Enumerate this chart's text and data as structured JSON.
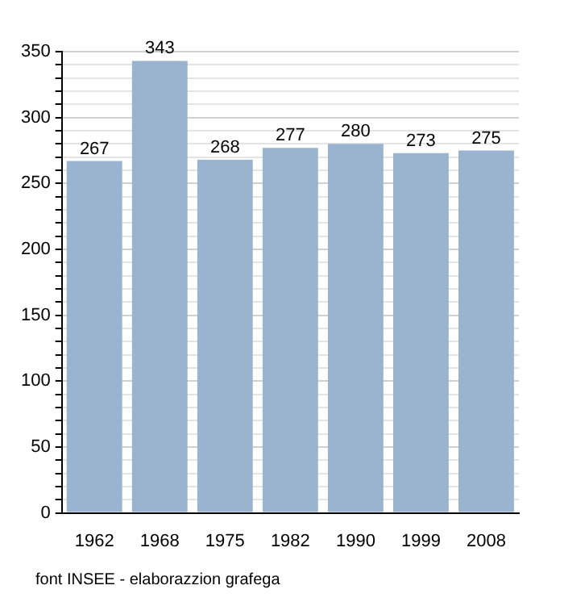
{
  "chart_data": {
    "type": "bar",
    "categories": [
      "1962",
      "1968",
      "1975",
      "1982",
      "1990",
      "1999",
      "2008"
    ],
    "values": [
      267,
      343,
      268,
      277,
      280,
      273,
      275
    ],
    "color": "#9ab4cf",
    "ylim": [
      0,
      350
    ],
    "yticks": [
      0,
      {
        "value": 10,
        "label": null
      },
      {
        "value": 20,
        "label": null
      },
      {
        "value": 30,
        "label": null
      },
      {
        "value": 40,
        "label": null
      },
      50,
      {
        "value": 60,
        "label": null
      },
      {
        "value": 70,
        "label": null
      },
      {
        "value": 80,
        "label": null
      },
      {
        "value": 90,
        "label": null
      },
      100,
      {
        "value": 110,
        "label": null
      },
      {
        "value": 120,
        "label": null
      },
      {
        "value": 130,
        "label": null
      },
      {
        "value": 140,
        "label": null
      },
      150,
      {
        "value": 160,
        "label": null
      },
      {
        "value": 170,
        "label": null
      },
      {
        "value": 180,
        "label": null
      },
      {
        "value": 190,
        "label": null
      },
      200,
      {
        "value": 210,
        "label": null
      },
      {
        "value": 220,
        "label": null
      },
      {
        "value": 230,
        "label": null
      },
      {
        "value": 240,
        "label": null
      },
      250,
      {
        "value": 260,
        "label": null
      },
      {
        "value": 270,
        "label": null
      },
      {
        "value": 280,
        "label": null
      },
      {
        "value": 290,
        "label": null
      },
      300,
      {
        "value": 310,
        "label": null
      },
      {
        "value": 320,
        "label": null
      },
      {
        "value": 330,
        "label": null
      },
      {
        "value": 340,
        "label": null
      },
      350
    ],
    "grid": "y",
    "data_labels": true,
    "annotations": [
      "font INSEE - elaborazzion grafega"
    ]
  }
}
